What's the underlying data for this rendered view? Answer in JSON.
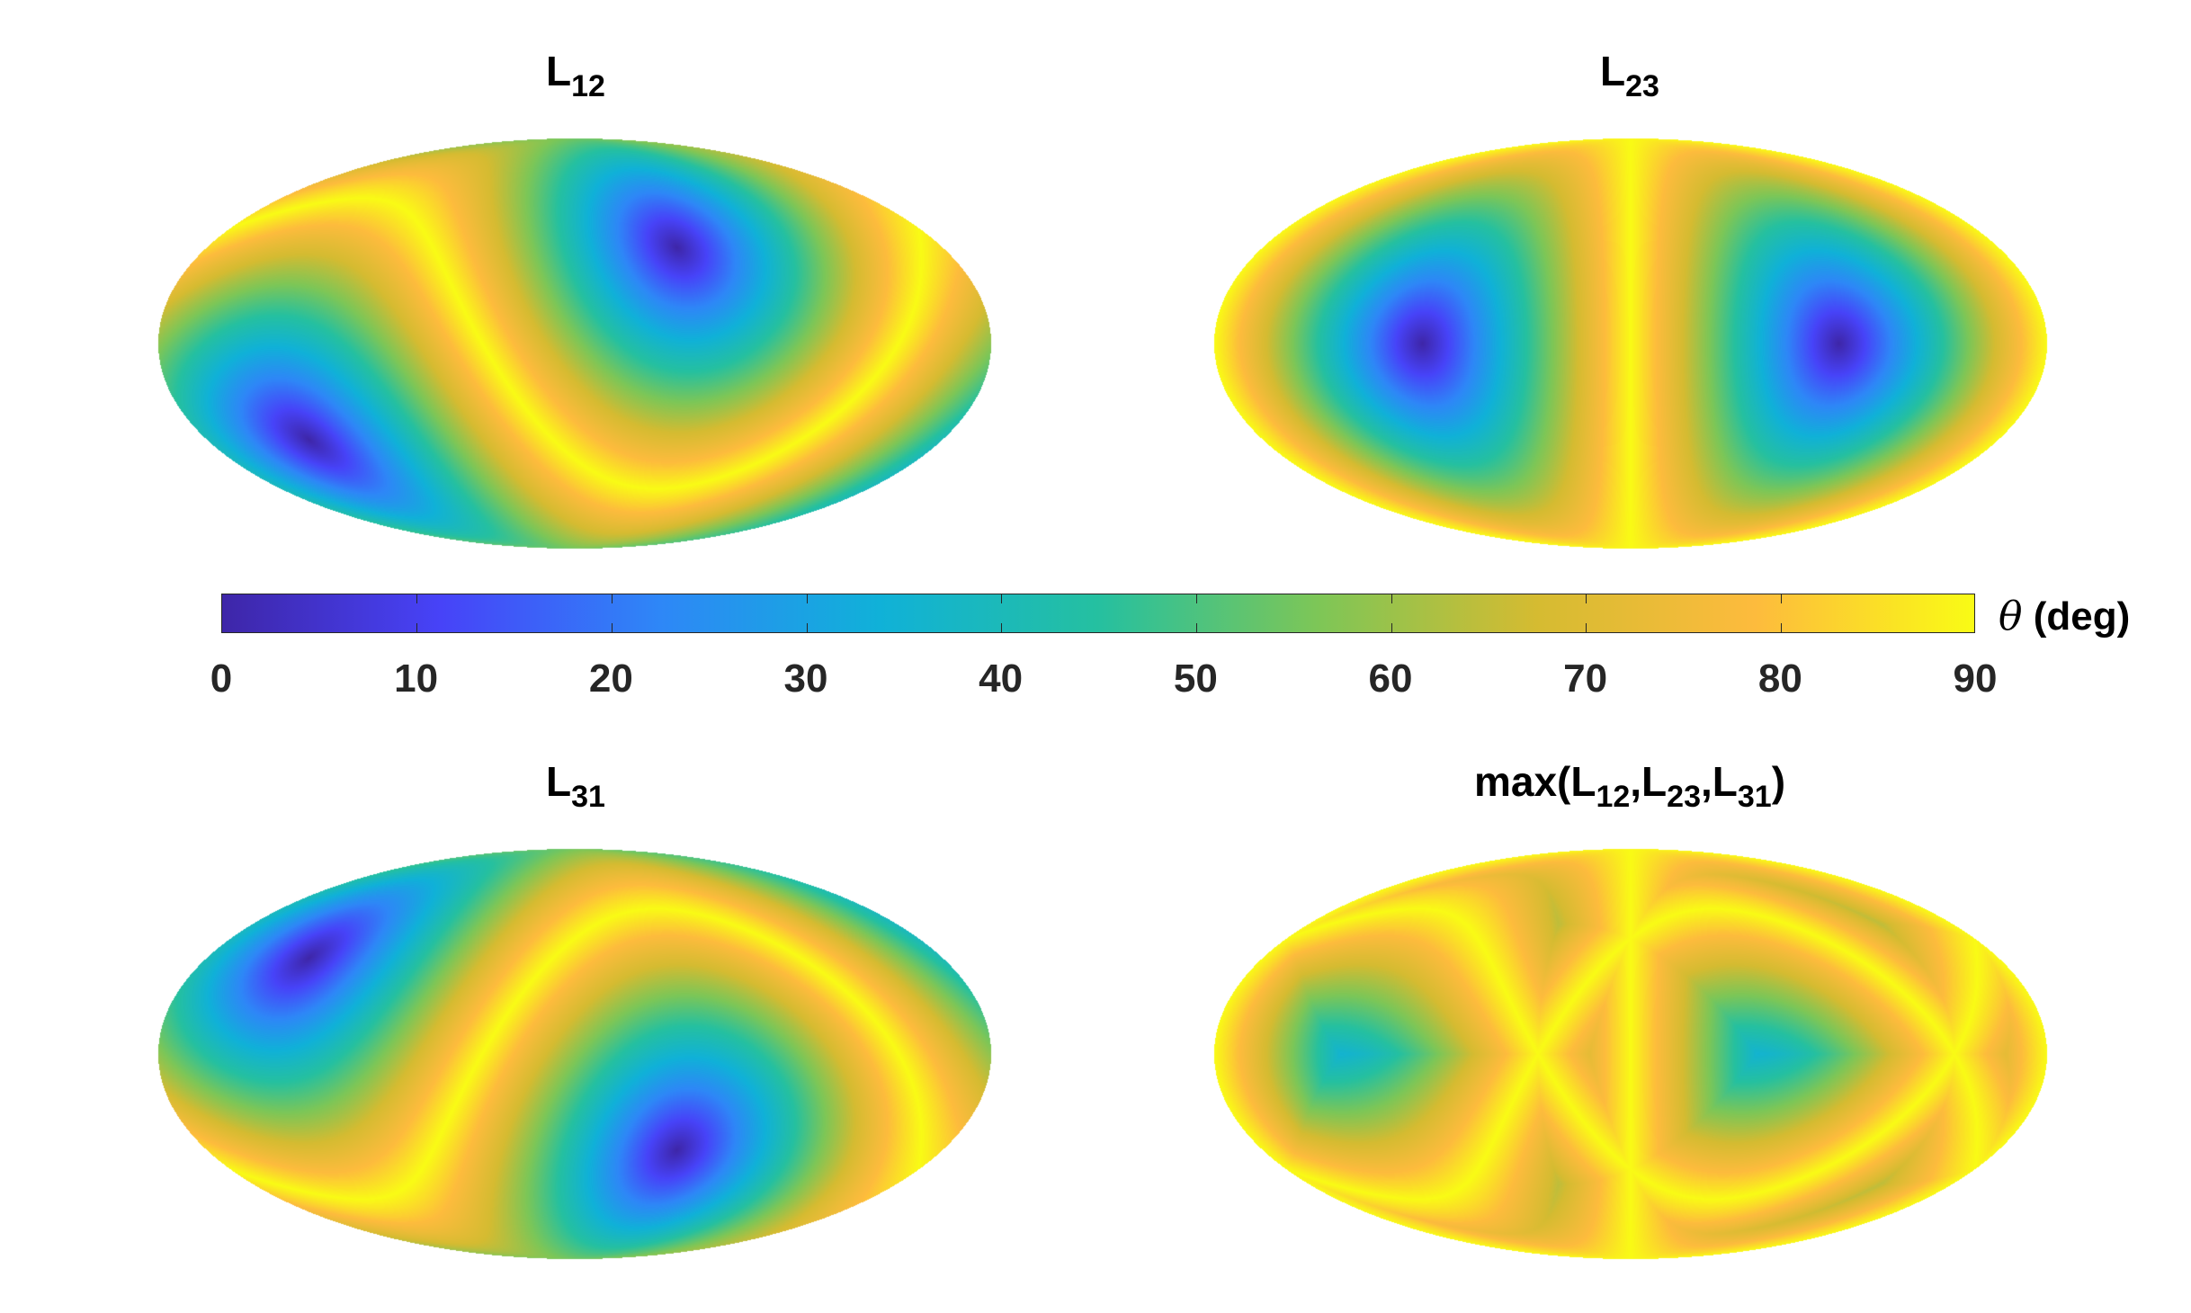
{
  "chart_data": [
    {
      "type": "heatmap",
      "projection": "mollweide",
      "title_base": "L",
      "title_sub": "12",
      "value_range": [
        0,
        90
      ],
      "minima": [
        {
          "lon": 50,
          "lat": 35
        },
        {
          "lon": -50,
          "lat": -35
        }
      ],
      "description_of_field": "angle field with two minima and an S-shaped 90-degree ridge"
    },
    {
      "type": "heatmap",
      "projection": "mollweide",
      "title_base": "L",
      "title_sub": "23",
      "value_range": [
        0,
        90
      ],
      "minima": [
        {
          "lon": -90,
          "lat": 0
        },
        {
          "lon": 90,
          "lat": 0
        }
      ],
      "description_of_field": "angle field with two equatorial minima and a vertical 90-degree ridge"
    },
    {
      "type": "heatmap",
      "projection": "mollweide",
      "title_base": "L",
      "title_sub": "31",
      "value_range": [
        0,
        90
      ],
      "minima": [
        {
          "lon": -130,
          "lat": 35
        },
        {
          "lon": 50,
          "lat": -35
        }
      ],
      "description_of_field": "angle field with two minima and an S-shaped 90-degree ridge"
    },
    {
      "type": "heatmap",
      "projection": "mollweide",
      "title_text": "max(L",
      "title_parts": [
        "12",
        ",L",
        "23",
        ",L",
        "31",
        ")"
      ],
      "value_range": [
        0,
        90
      ],
      "description_of_field": "maximum of the three fields"
    }
  ],
  "colorbar": {
    "ticks": [
      "0",
      "10",
      "20",
      "30",
      "40",
      "50",
      "60",
      "70",
      "80",
      "90"
    ],
    "tick_values": [
      0,
      10,
      20,
      30,
      40,
      50,
      60,
      70,
      80,
      90
    ],
    "min": 0,
    "max": 90,
    "label_symbol": "θ",
    "label_unit": "(deg)",
    "colormap": "parula",
    "colors": [
      "#3e26a8",
      "#4743f8",
      "#2e87f7",
      "#10b1d8",
      "#25c0a0",
      "#7dc657",
      "#d5bb31",
      "#fdbb3d",
      "#f9fb15"
    ]
  }
}
